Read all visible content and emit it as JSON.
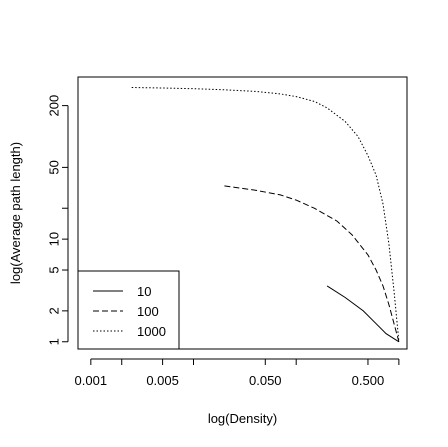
{
  "chart_data": {
    "type": "line",
    "title": "",
    "xlabel": "log(Density)",
    "ylabel": "log(Average path length)",
    "x_scale": "log",
    "y_scale": "log",
    "xlim": [
      0.00075,
      1.2
    ],
    "ylim": [
      0.85,
      380
    ],
    "x_ticks": [
      0.001,
      0.002,
      0.005,
      0.01,
      0.05,
      0.1,
      0.5,
      1
    ],
    "x_tick_labels": [
      "0.001",
      "",
      "0.005",
      "",
      "0.050",
      "",
      "0.500",
      ""
    ],
    "y_ticks": [
      1,
      2,
      5,
      10,
      20,
      50,
      200
    ],
    "y_tick_labels": [
      "1",
      "2",
      "5",
      "10",
      "",
      "50",
      "200"
    ],
    "grid": false,
    "legend": {
      "position": "bottom-left",
      "entries": [
        "10",
        "100",
        "1000"
      ]
    },
    "series": [
      {
        "name": "10",
        "style": "solid",
        "x": [
          0.2,
          0.3,
          0.45,
          0.6,
          0.75,
          1.0
        ],
        "y": [
          3.5,
          2.7,
          2.0,
          1.5,
          1.2,
          1.0
        ]
      },
      {
        "name": "100",
        "style": "dashed",
        "x": [
          0.02,
          0.04,
          0.07,
          0.1,
          0.15,
          0.25,
          0.35,
          0.5,
          0.6,
          0.7,
          0.8,
          1.0
        ],
        "y": [
          33,
          30,
          27,
          24,
          20,
          15,
          11,
          7,
          5,
          3.5,
          2.3,
          1.0
        ]
      },
      {
        "name": "1000",
        "style": "dotted",
        "x": [
          0.0025,
          0.005,
          0.01,
          0.02,
          0.04,
          0.07,
          0.1,
          0.15,
          0.2,
          0.3,
          0.4,
          0.5,
          0.6,
          0.7,
          0.8,
          0.9,
          1.0
        ],
        "y": [
          300,
          297,
          292,
          285,
          275,
          260,
          245,
          220,
          190,
          140,
          100,
          65,
          42,
          22,
          9,
          3,
          1.0
        ]
      }
    ]
  }
}
